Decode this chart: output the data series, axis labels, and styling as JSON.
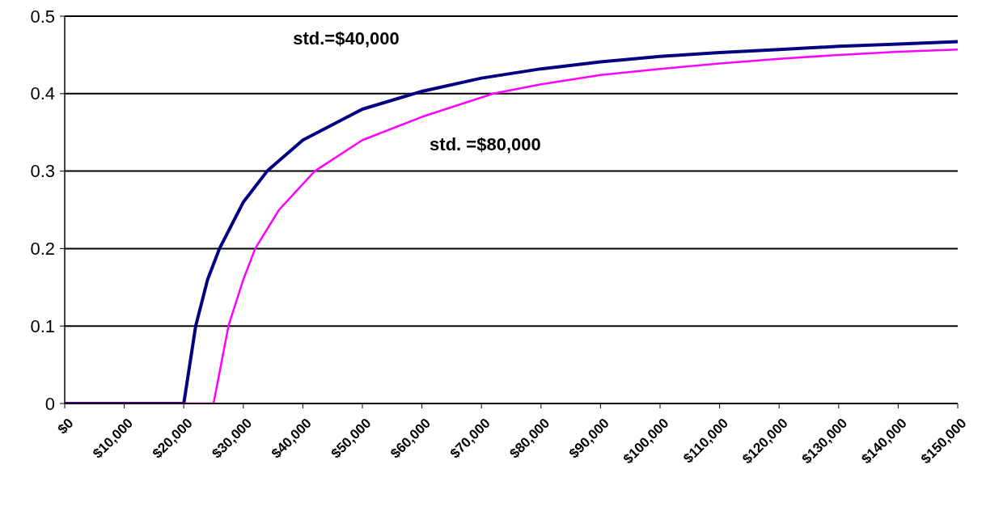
{
  "chart_data": {
    "type": "line",
    "xlim": [
      0,
      150000
    ],
    "ylim": [
      0,
      0.5
    ],
    "xticks": [
      {
        "value": 0,
        "label": "$0"
      },
      {
        "value": 10000,
        "label": "$10,000"
      },
      {
        "value": 20000,
        "label": "$20,000"
      },
      {
        "value": 30000,
        "label": "$30,000"
      },
      {
        "value": 40000,
        "label": "$40,000"
      },
      {
        "value": 50000,
        "label": "$50,000"
      },
      {
        "value": 60000,
        "label": "$60,000"
      },
      {
        "value": 70000,
        "label": "$70,000"
      },
      {
        "value": 80000,
        "label": "$80,000"
      },
      {
        "value": 90000,
        "label": "$90,000"
      },
      {
        "value": 100000,
        "label": "$100,000"
      },
      {
        "value": 110000,
        "label": "$110,000"
      },
      {
        "value": 120000,
        "label": "$120,000"
      },
      {
        "value": 130000,
        "label": "$130,000"
      },
      {
        "value": 140000,
        "label": "$140,000"
      },
      {
        "value": 150000,
        "label": "$150,000"
      }
    ],
    "yticks": [
      0,
      0.1,
      0.2,
      0.3,
      0.4,
      0.5
    ],
    "grid": "y",
    "marker": "none",
    "line_style": "solid",
    "series": [
      {
        "name": "std.=$40,000",
        "color": "#000080",
        "x": [
          0,
          20000,
          21000,
          22000,
          24000,
          26000,
          30000,
          34000,
          40000,
          50000,
          60000,
          70000,
          80000,
          90000,
          100000,
          110000,
          120000,
          130000,
          140000,
          150000
        ],
        "values": [
          0,
          0,
          0.05,
          0.1,
          0.16,
          0.2,
          0.26,
          0.3,
          0.34,
          0.38,
          0.403,
          0.42,
          0.432,
          0.441,
          0.448,
          0.453,
          0.457,
          0.461,
          0.464,
          0.467
        ]
      },
      {
        "name": "std. =$80,000",
        "color": "#ff00ff",
        "x": [
          0,
          25000,
          26000,
          27500,
          30000,
          32000,
          36000,
          42000,
          50000,
          60000,
          72000,
          80000,
          90000,
          100000,
          110000,
          120000,
          130000,
          140000,
          150000
        ],
        "values": [
          0,
          0,
          0.04,
          0.1,
          0.16,
          0.2,
          0.25,
          0.3,
          0.34,
          0.37,
          0.4,
          0.412,
          0.424,
          0.432,
          0.439,
          0.445,
          0.45,
          0.454,
          0.457
        ]
      }
    ]
  }
}
